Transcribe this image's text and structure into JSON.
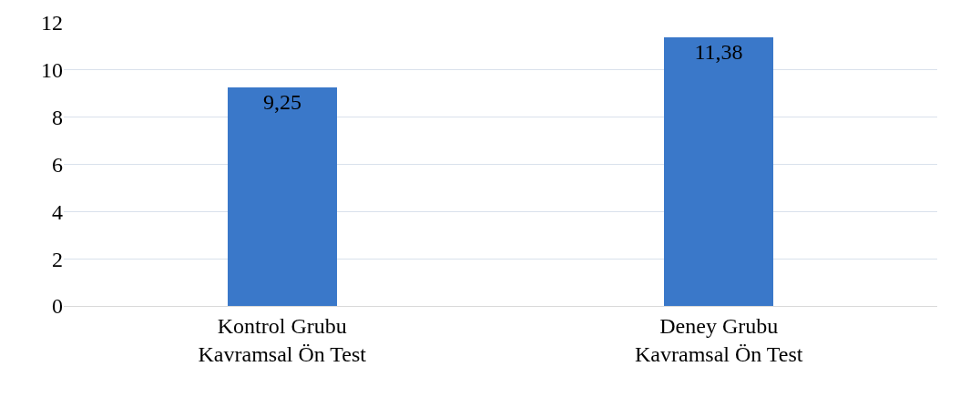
{
  "chart_data": {
    "type": "bar",
    "categories": [
      "Kontrol Grubu\nKavramsal Ön Test",
      "Deney Grubu\nKavramsal Ön Test"
    ],
    "values": [
      9.25,
      11.38
    ],
    "value_labels": [
      "9,25",
      "11,38"
    ],
    "color": "#3a78c9",
    "ylim": [
      0,
      12
    ],
    "yticks": [
      0,
      2,
      4,
      6,
      8,
      10,
      12
    ],
    "grid": "y"
  }
}
